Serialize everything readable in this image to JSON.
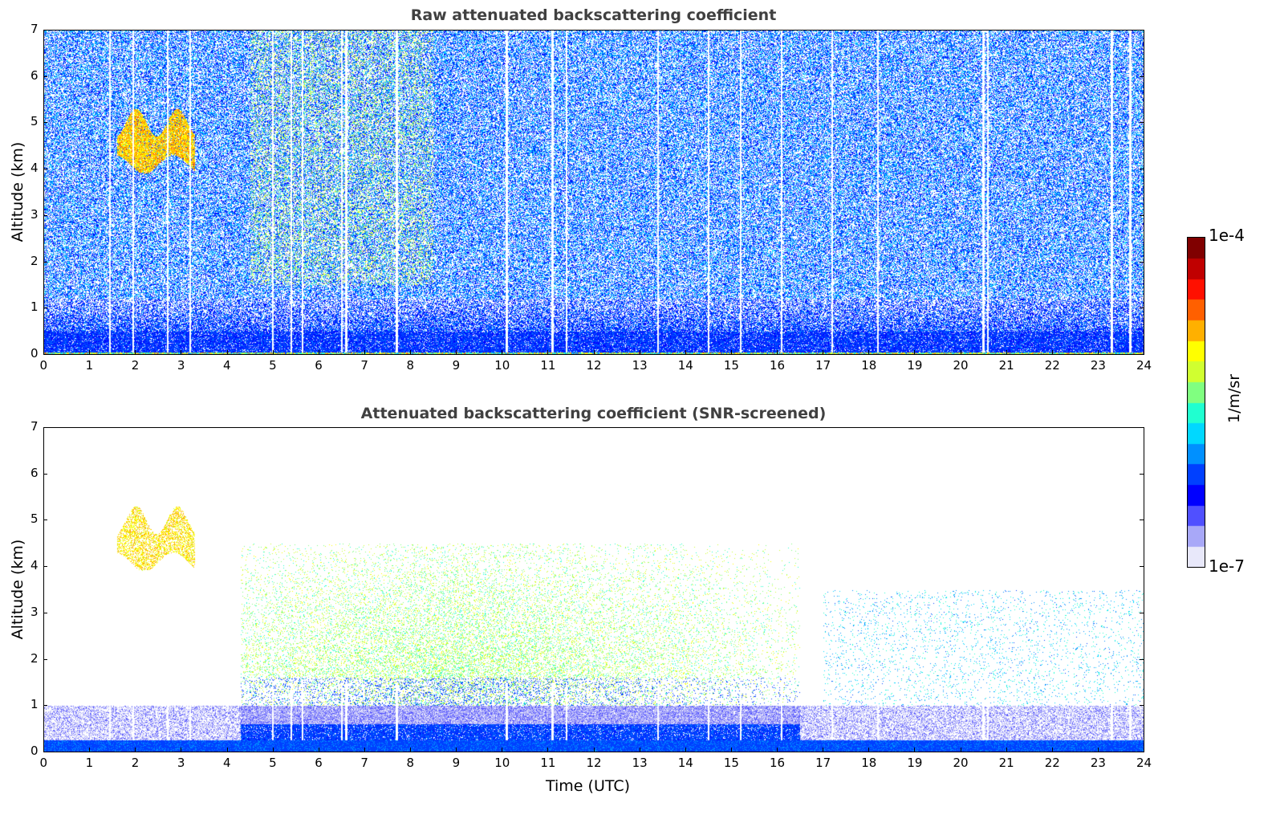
{
  "chart_data": [
    {
      "type": "heatmap",
      "title": "Raw attenuated backscattering coefficient",
      "xlabel": "",
      "ylabel": "Altitude (km)",
      "xlim": [
        0,
        24
      ],
      "ylim": [
        0,
        7
      ],
      "xticks": [
        "0",
        "1",
        "2",
        "3",
        "4",
        "5",
        "6",
        "7",
        "8",
        "9",
        "10",
        "11",
        "12",
        "13",
        "14",
        "15",
        "16",
        "17",
        "18",
        "19",
        "20",
        "21",
        "22",
        "23",
        "24"
      ],
      "yticks": [
        "0",
        "1",
        "2",
        "3",
        "4",
        "5",
        "6",
        "7"
      ],
      "features": {
        "boundary_layer_top_km": 0.5,
        "cloud": {
          "t_start": 1.6,
          "t_end": 3.3,
          "z_bottom": 4.1,
          "z_top": 5.2
        },
        "data_gaps_utc": [
          1.45,
          1.95,
          2.7,
          3.2,
          5.0,
          5.4,
          5.65,
          6.5,
          6.6,
          7.7,
          10.1,
          11.1,
          11.4,
          13.4,
          14.5,
          15.2,
          16.1,
          17.2,
          18.2,
          20.5,
          20.6,
          23.3,
          23.7
        ]
      }
    },
    {
      "type": "heatmap",
      "title": "Attenuated backscattering coefficient (SNR-screened)",
      "xlabel": "Time (UTC)",
      "ylabel": "Altitude (km)",
      "xlim": [
        0,
        24
      ],
      "ylim": [
        0,
        7
      ],
      "xticks": [
        "0",
        "1",
        "2",
        "3",
        "4",
        "5",
        "6",
        "7",
        "8",
        "9",
        "10",
        "11",
        "12",
        "13",
        "14",
        "15",
        "16",
        "17",
        "18",
        "19",
        "20",
        "21",
        "22",
        "23",
        "24"
      ],
      "yticks": [
        "0",
        "1",
        "2",
        "3",
        "4",
        "5",
        "6",
        "7"
      ],
      "features": {
        "aerosol_layer": {
          "t_start": 4.3,
          "t_end": 16.5,
          "z_bottom": 1.0,
          "z_top": 4.5
        }
      }
    }
  ],
  "colorbar": {
    "label": "1/m/sr",
    "min_label": "1e-7",
    "max_label": "1e-4",
    "range": [
      1e-07,
      0.0001
    ],
    "scale": "log",
    "stops": [
      "#e8e8fa",
      "#a8a8f8",
      "#5050ff",
      "#0000ff",
      "#0040ff",
      "#0090ff",
      "#00d8ff",
      "#20ffd0",
      "#80ff80",
      "#d0ff30",
      "#ffff00",
      "#ffb000",
      "#ff6000",
      "#ff1000",
      "#c00000",
      "#800000"
    ]
  }
}
